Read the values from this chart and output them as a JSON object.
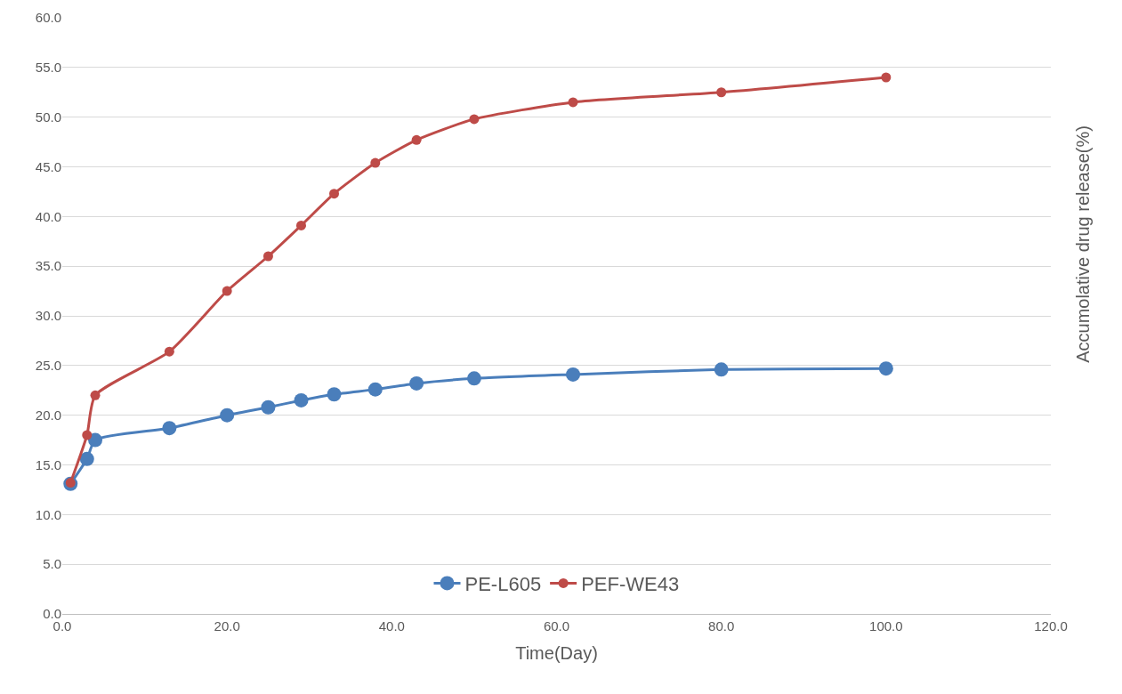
{
  "chart_data": {
    "type": "line",
    "xlabel": "Time(Day)",
    "ylabel": "Accumolative drug release(%)",
    "xlim": [
      0,
      120
    ],
    "ylim": [
      0,
      60
    ],
    "xticks": [
      {
        "value": 0,
        "label": "0.0"
      },
      {
        "value": 20,
        "label": "20.0"
      },
      {
        "value": 40,
        "label": "40.0"
      },
      {
        "value": 60,
        "label": "60.0"
      },
      {
        "value": 80,
        "label": "80.0"
      },
      {
        "value": 100,
        "label": "100.0"
      },
      {
        "value": 120,
        "label": "120.0"
      }
    ],
    "yticks": [
      {
        "value": 0,
        "label": "0.0"
      },
      {
        "value": 5,
        "label": "5.0"
      },
      {
        "value": 10,
        "label": "10.0"
      },
      {
        "value": 15,
        "label": "15.0"
      },
      {
        "value": 20,
        "label": "20.0"
      },
      {
        "value": 25,
        "label": "25.0"
      },
      {
        "value": 30,
        "label": "30.0"
      },
      {
        "value": 35,
        "label": "35.0"
      },
      {
        "value": 40,
        "label": "40.0"
      },
      {
        "value": 45,
        "label": "45.0"
      },
      {
        "value": 50,
        "label": "50.0"
      },
      {
        "value": 55,
        "label": "55.0"
      },
      {
        "value": 60,
        "label": "60.0"
      }
    ],
    "x": [
      1,
      3,
      4,
      13,
      20,
      25,
      29,
      33,
      38,
      43,
      50,
      62,
      80,
      100
    ],
    "series": [
      {
        "name": "PE-L605",
        "color": "#4a7ebb",
        "values": [
          13.1,
          15.6,
          17.5,
          18.7,
          20.0,
          20.8,
          21.5,
          22.1,
          22.6,
          23.2,
          23.7,
          24.1,
          24.6,
          24.7
        ]
      },
      {
        "name": "PEF-WE43",
        "color": "#be4b48",
        "values": [
          13.2,
          18.0,
          22.0,
          26.4,
          32.5,
          36.0,
          39.1,
          42.3,
          45.4,
          47.7,
          49.8,
          51.5,
          52.5,
          54.0
        ]
      }
    ],
    "grid": "y",
    "legend": "bottom",
    "marker": "circle",
    "line_style": "solid"
  }
}
